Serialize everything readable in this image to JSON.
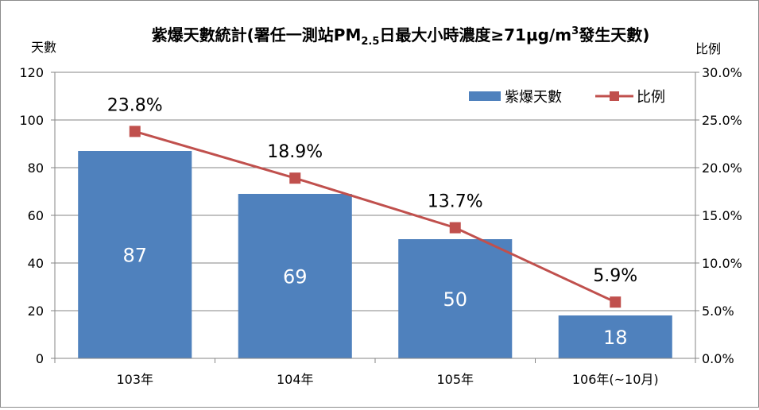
{
  "chart_data": {
    "type": "bar",
    "title": "紫爆天數統計(署任一測站PM",
    "title_sub": "2.5",
    "title_mid": "日最大小時濃度≥71μg/m",
    "title_sup": "3",
    "title_end": "發生天數)",
    "ylabel": "天數",
    "y2label": "比例",
    "categories": [
      "103年",
      "104年",
      "105年",
      "106年(~10月)"
    ],
    "ylim": [
      0,
      120
    ],
    "yticks": [
      "0",
      "20",
      "40",
      "60",
      "80",
      "100",
      "120"
    ],
    "y2lim": [
      0,
      30
    ],
    "y2ticks": [
      "0.0%",
      "5.0%",
      "10.0%",
      "15.0%",
      "20.0%",
      "25.0%",
      "30.0%"
    ],
    "series": [
      {
        "name": "紫爆天數",
        "type": "bar",
        "axis": "left",
        "color": "#4f81bd",
        "values": [
          87,
          69,
          50,
          18
        ],
        "labels": [
          "87",
          "69",
          "50",
          "18"
        ]
      },
      {
        "name": "比例",
        "type": "line",
        "axis": "right",
        "color": "#c0504d",
        "values": [
          23.8,
          18.9,
          13.7,
          5.9
        ],
        "labels": [
          "23.8%",
          "18.9%",
          "13.7%",
          "5.9%"
        ]
      }
    ],
    "grid": true,
    "legend": "top-right"
  }
}
